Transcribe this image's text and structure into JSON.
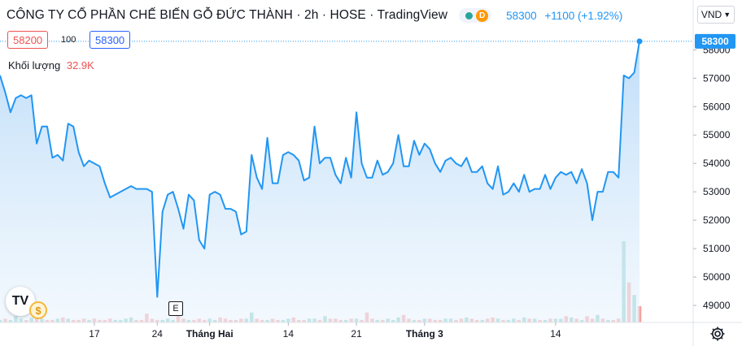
{
  "header": {
    "title": "CÔNG TY CỔ PHẦN CHẾ BIẾN GỖ ĐỨC THÀNH · 2h · HOSE · TradingView",
    "market_badge": "D",
    "price": "58300",
    "change": "+1100 (+1.92%)"
  },
  "currency": {
    "label": "VND"
  },
  "order_book": {
    "bid": "58200",
    "spread": "100",
    "ask": "58300"
  },
  "volume_legend": {
    "label": "Khối lượng",
    "value": "32.9K"
  },
  "markers": {
    "dividend": "$",
    "earnings": "E",
    "logo": "TV"
  },
  "colors": {
    "line": "#2196f3",
    "area": "#d7ebfc",
    "price_tag": "#2196f3",
    "volume_up": "#26a69a",
    "volume_down": "#ef5350"
  },
  "chart_data": {
    "type": "area",
    "price_axis": {
      "ticks": [
        "58000",
        "57000",
        "56000",
        "55000",
        "54000",
        "53000",
        "52000",
        "51000",
        "50000",
        "49000"
      ],
      "range": [
        48400,
        59200
      ],
      "last_price_label": "58300"
    },
    "time_axis": {
      "labels": [
        {
          "text": "17",
          "bar": 18
        },
        {
          "text": "24",
          "bar": 30
        },
        {
          "text": "Tháng Hai",
          "bar": 40
        },
        {
          "text": "14",
          "bar": 55
        },
        {
          "text": "21",
          "bar": 68
        },
        {
          "text": "Tháng 3",
          "bar": 81
        },
        {
          "text": "14",
          "bar": 106
        }
      ]
    },
    "series": [
      {
        "values": [
          57100,
          56500,
          55800,
          56300,
          56400,
          56300,
          56400,
          54700,
          55300,
          55300,
          54200,
          54300,
          54100,
          55400,
          55300,
          54400,
          53900,
          54100,
          54000,
          53900,
          53300,
          52800,
          52900,
          53000,
          53100,
          53200,
          53100,
          53100,
          53100,
          53000,
          49300,
          52300,
          52900,
          53000,
          52400,
          51700,
          52900,
          52700,
          51300,
          51000,
          52900,
          53000,
          52900,
          52400,
          52400,
          52300,
          51500,
          51600,
          54300,
          53500,
          53100,
          54900,
          53300,
          53300,
          54300,
          54400,
          54300,
          54100,
          53400,
          53500,
          55300,
          54000,
          54200,
          54200,
          53600,
          53300,
          54200,
          53500,
          55800,
          54000,
          53500,
          53500,
          54100,
          53600,
          53700,
          54000,
          55000,
          53900,
          53900,
          54800,
          54300,
          54700,
          54500,
          54000,
          53700,
          54100,
          54200,
          54000,
          53900,
          54200,
          53700,
          53700,
          53900,
          53300,
          53100,
          53900,
          52900,
          53000,
          53300,
          53000,
          53600,
          53000,
          53100,
          53100,
          53600,
          53100,
          53500,
          53700,
          53600,
          53700,
          53300,
          53800,
          53300,
          52000,
          53000,
          53000,
          53700,
          53700,
          53500,
          57100,
          57000,
          57200,
          58300
        ],
        "volume_k": [
          2,
          3,
          2,
          5,
          3,
          2,
          4,
          9,
          3,
          2,
          2,
          3,
          4,
          3,
          2,
          2,
          3,
          2,
          3,
          2,
          2,
          3,
          2,
          2,
          3,
          4,
          2,
          2,
          7,
          3,
          2,
          2,
          3,
          2,
          8,
          3,
          2,
          2,
          3,
          2,
          3,
          2,
          4,
          3,
          2,
          2,
          3,
          3,
          8,
          3,
          2,
          2,
          3,
          2,
          2,
          3,
          4,
          2,
          2,
          3,
          3,
          2,
          5,
          3,
          3,
          2,
          2,
          3,
          3,
          2,
          8,
          3,
          2,
          2,
          3,
          2,
          4,
          6,
          3,
          2,
          2,
          3,
          3,
          2,
          2,
          3,
          3,
          2,
          3,
          4,
          3,
          2,
          2,
          3,
          4,
          3,
          2,
          2,
          3,
          2,
          4,
          3,
          3,
          2,
          2,
          3,
          3,
          3,
          5,
          4,
          3,
          2,
          5,
          3,
          6,
          3,
          2,
          2,
          3,
          65,
          32,
          22,
          13
        ],
        "volume_up": [
          true,
          false,
          true,
          true,
          true,
          false,
          true,
          false,
          true,
          false,
          false,
          true,
          false,
          true,
          false,
          false,
          false,
          true,
          false,
          false,
          false,
          false,
          true,
          true,
          true,
          true,
          false,
          false,
          false,
          false,
          false,
          true,
          true,
          true,
          false,
          false,
          true,
          false,
          false,
          false,
          true,
          true,
          false,
          false,
          false,
          false,
          false,
          true,
          true,
          false,
          false,
          true,
          false,
          false,
          true,
          true,
          false,
          false,
          false,
          true,
          true,
          false,
          true,
          false,
          false,
          false,
          true,
          false,
          true,
          false,
          false,
          false,
          true,
          false,
          true,
          true,
          true,
          false,
          false,
          true,
          false,
          true,
          false,
          false,
          false,
          true,
          true,
          false,
          false,
          true,
          false,
          false,
          true,
          false,
          false,
          true,
          false,
          true,
          true,
          false,
          true,
          false,
          true,
          false,
          true,
          false,
          true,
          true,
          false,
          true,
          false,
          true,
          false,
          false,
          true,
          false,
          true,
          false,
          false,
          true,
          false,
          true,
          false
        ]
      }
    ]
  }
}
